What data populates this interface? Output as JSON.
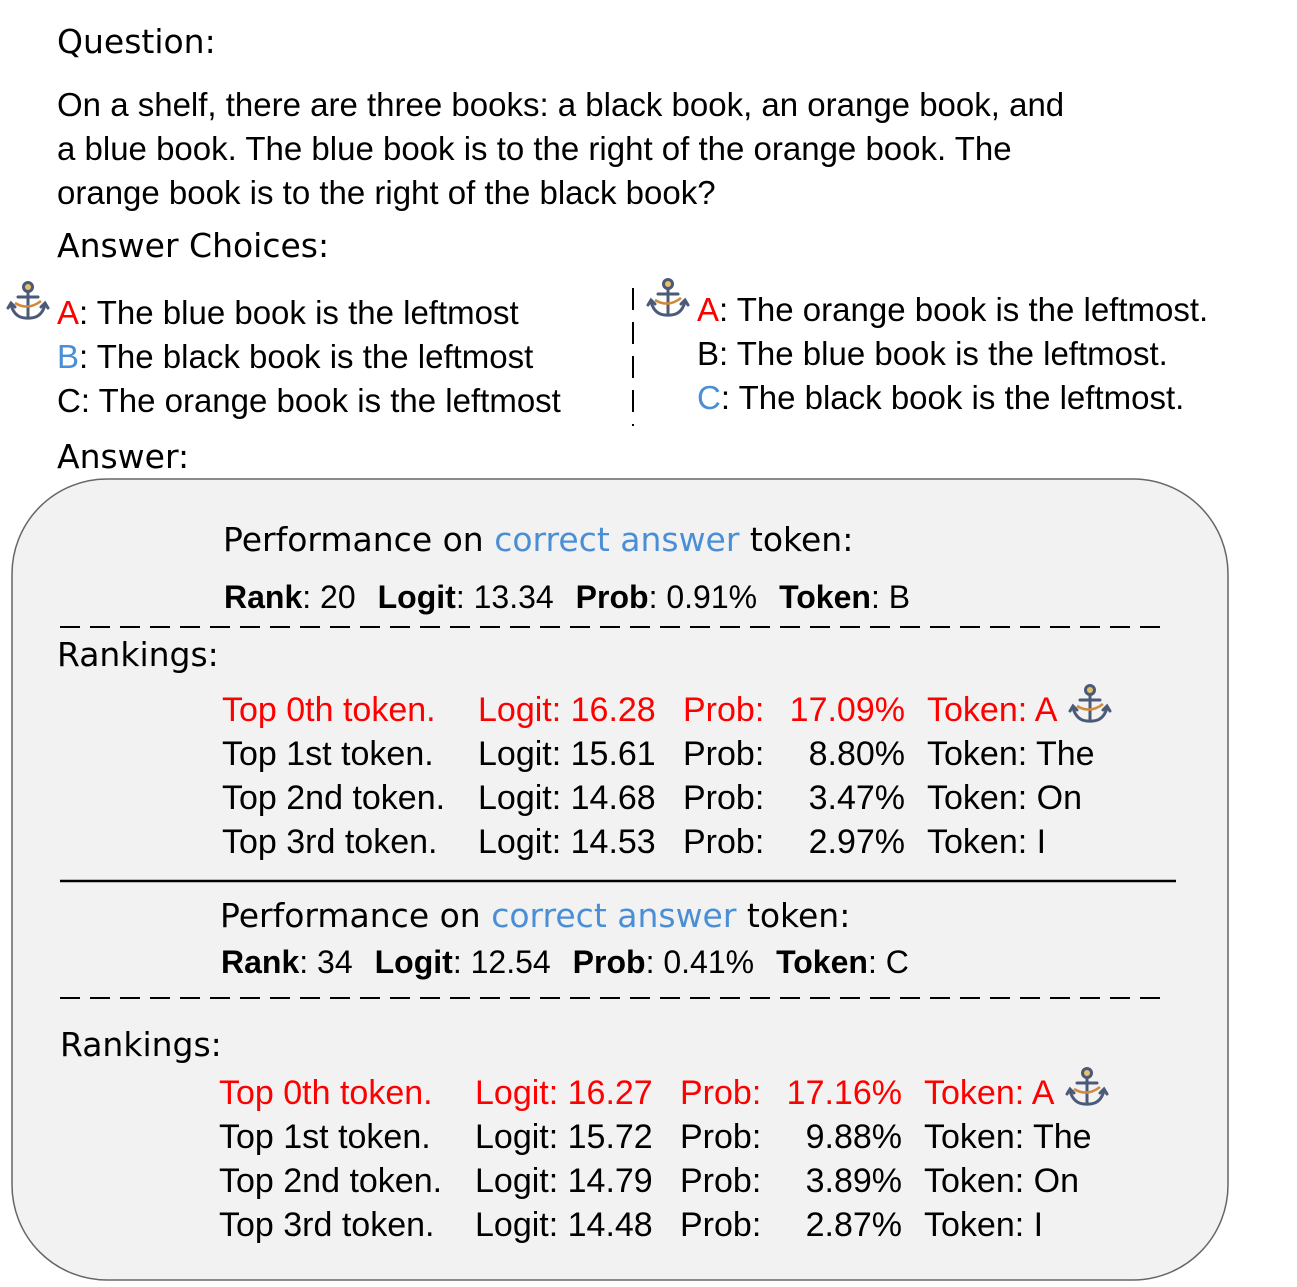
{
  "question": {
    "label": "Question:",
    "lines": [
      "On a shelf, there are three books: a black book, an orange book, and",
      "a blue book. The blue book is to the right of the orange book. The",
      "orange book is to the right of the black book?"
    ]
  },
  "answer_choices": {
    "label": "Answer Choices:",
    "left": [
      {
        "letter": "A",
        "color": "#ff0000",
        "text": ": The blue book is the leftmost"
      },
      {
        "letter": "B",
        "color": "#4a8fd6",
        "text": ": The black book is the leftmost"
      },
      {
        "letter": "C",
        "color": "#000000",
        "text": ": The orange book is the leftmost"
      }
    ],
    "right": [
      {
        "letter": "A",
        "color": "#ff0000",
        "text": ": The orange book is the leftmost."
      },
      {
        "letter": "B",
        "color": "#000000",
        "text": ": The blue book is the leftmost."
      },
      {
        "letter": "C",
        "color": "#4a8fd6",
        "text": ": The black book is the leftmost."
      }
    ]
  },
  "answer": {
    "label": "Answer:",
    "sections": [
      {
        "heading": {
          "before": "Performance on ",
          "highlight": "correct answer",
          "after": " token:",
          "highlight_color": "#4a8fd6"
        },
        "stats": [
          {
            "label": "Rank",
            "value": ": 20"
          },
          {
            "label": "Logit",
            "value": ": 13.34"
          },
          {
            "label": "Prob",
            "value": ": 0.91%"
          },
          {
            "label": "Token",
            "value": ": B"
          }
        ],
        "rankings_label": "Rankings:",
        "rows": [
          {
            "color": "#ff0000",
            "cells": [
              "Top 0th token.",
              "Logit: 16.28",
              "Prob:",
              "17.09%",
              "Token: A"
            ]
          },
          {
            "color": "#000000",
            "cells": [
              "Top 1st token.",
              "Logit: 15.61",
              "Prob:",
              "8.80%",
              "Token: The"
            ]
          },
          {
            "color": "#000000",
            "cells": [
              "Top 2nd token.",
              "Logit: 14.68",
              "Prob:",
              "3.47%",
              "Token: On"
            ]
          },
          {
            "color": "#000000",
            "cells": [
              "Top 3rd token.",
              "Logit: 14.53",
              "Prob:",
              "2.97%",
              "Token: I"
            ]
          }
        ]
      },
      {
        "heading": {
          "before": "Performance on ",
          "highlight": "correct answer",
          "after": " token:",
          "highlight_color": "#4a8fd6"
        },
        "stats": [
          {
            "label": "Rank",
            "value": ": 34"
          },
          {
            "label": "Logit",
            "value": ": 12.54"
          },
          {
            "label": "Prob",
            "value": ": 0.41%"
          },
          {
            "label": "Token",
            "value": ": C"
          }
        ],
        "rankings_label": "Rankings:",
        "rows": [
          {
            "color": "#ff0000",
            "cells": [
              "Top 0th token.",
              "Logit: 16.27",
              "Prob:",
              "17.16%",
              "Token: A"
            ]
          },
          {
            "color": "#000000",
            "cells": [
              "Top 1st token.",
              "Logit: 15.72",
              "Prob:",
              "9.88%",
              "Token: The"
            ]
          },
          {
            "color": "#000000",
            "cells": [
              "Top 2nd token.",
              "Logit: 14.79",
              "Prob:",
              "3.89%",
              "Token: On"
            ]
          },
          {
            "color": "#000000",
            "cells": [
              "Top 3rd token.",
              "Logit: 14.48",
              "Prob:",
              "2.87%",
              "Token: I"
            ]
          }
        ]
      }
    ]
  }
}
